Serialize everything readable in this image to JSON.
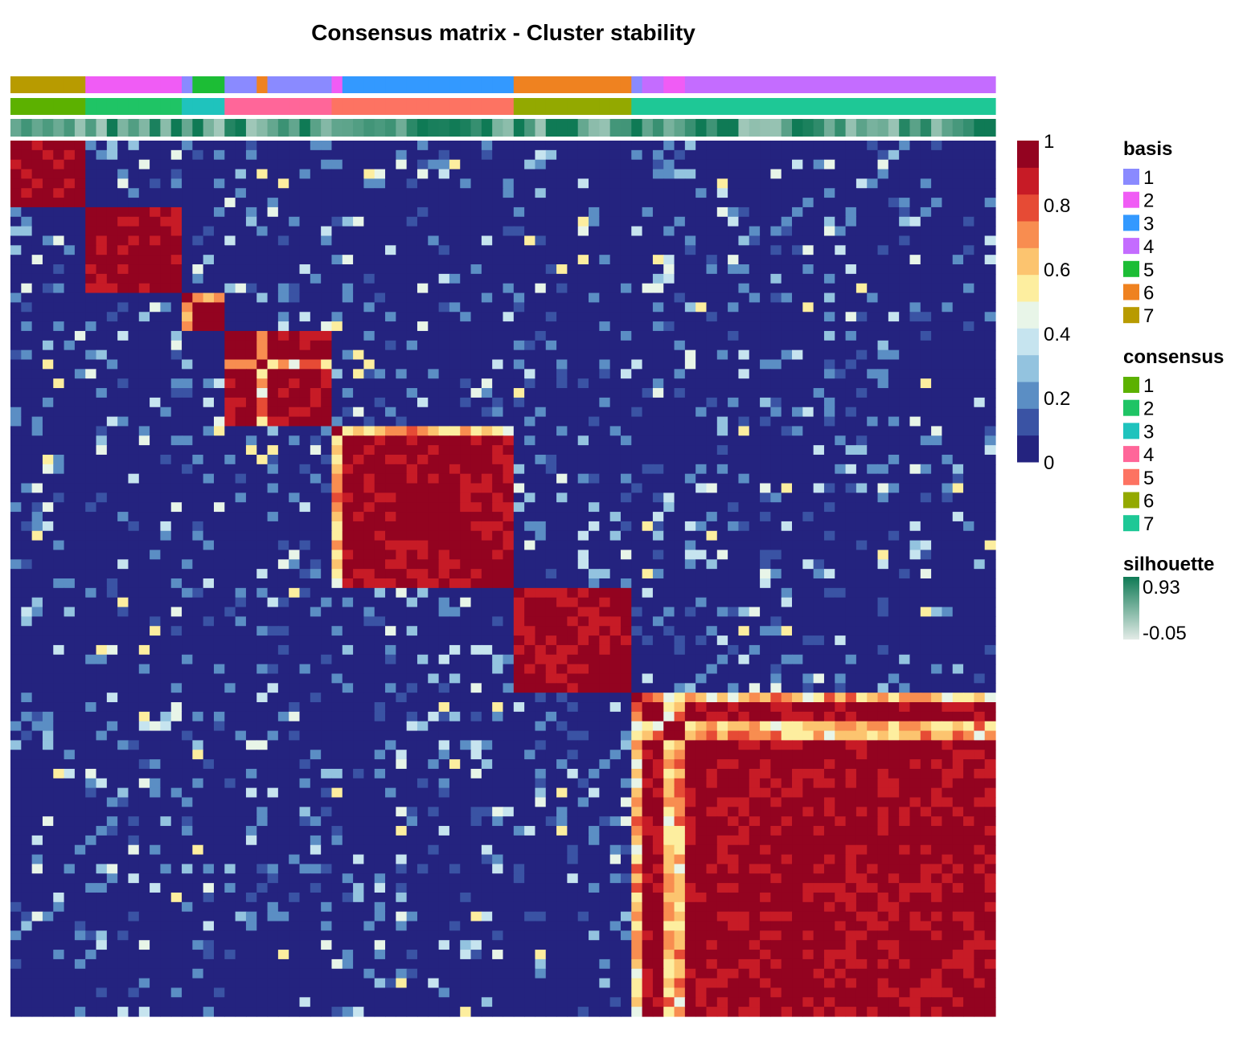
{
  "chart_data": {
    "type": "heatmap",
    "title": "Consensus matrix - Cluster stability",
    "n": 92,
    "value_range": [
      0,
      1
    ],
    "color_scale": {
      "ticks": [
        "1",
        "0.8",
        "0.6",
        "0.4",
        "0.2",
        "0"
      ],
      "colors": [
        "#24237f",
        "#3a53a4",
        "#5b8ec4",
        "#93c3df",
        "#c6e4ef",
        "#e8f5e8",
        "#fdee9f",
        "#fcc46f",
        "#f88d50",
        "#e64b35",
        "#c71b26",
        "#930320"
      ]
    },
    "clusters": [
      {
        "cluster": 7,
        "size": 7,
        "consensus_cluster": 1
      },
      {
        "cluster": 2,
        "size": 9,
        "consensus_cluster": 2
      },
      {
        "cluster": 1,
        "size": 1,
        "consensus_cluster": 3
      },
      {
        "cluster": 5,
        "size": 3,
        "consensus_cluster": 3
      },
      {
        "cluster": 1,
        "size": 3,
        "consensus_cluster": 4
      },
      {
        "cluster": 6,
        "size": 1,
        "consensus_cluster": 4
      },
      {
        "cluster": 1,
        "size": 6,
        "consensus_cluster": 4
      },
      {
        "cluster": 2,
        "size": 1,
        "consensus_cluster": 5
      },
      {
        "cluster": 3,
        "size": 16,
        "consensus_cluster": 5
      },
      {
        "cluster": 6,
        "size": 11,
        "consensus_cluster": 6
      },
      {
        "cluster": 1,
        "size": 1,
        "consensus_cluster": 7
      },
      {
        "cluster": 4,
        "size": 2,
        "consensus_cluster": 7
      },
      {
        "cluster": 2,
        "size": 2,
        "consensus_cluster": 7
      },
      {
        "cluster": 4,
        "size": 29,
        "consensus_cluster": 7
      }
    ],
    "legends": [
      {
        "title": "basis",
        "items": [
          {
            "label": "1",
            "color": "#8a8aff"
          },
          {
            "label": "2",
            "color": "#f05cf5"
          },
          {
            "label": "3",
            "color": "#3399ff"
          },
          {
            "label": "4",
            "color": "#c46cff"
          },
          {
            "label": "5",
            "color": "#1cbd35"
          },
          {
            "label": "6",
            "color": "#ef8220"
          },
          {
            "label": "7",
            "color": "#b89b00"
          }
        ]
      },
      {
        "title": "consensus",
        "items": [
          {
            "label": "1",
            "color": "#5cb100"
          },
          {
            "label": "2",
            "color": "#1fc465"
          },
          {
            "label": "3",
            "color": "#1fc3bd"
          },
          {
            "label": "4",
            "color": "#ff6699"
          },
          {
            "label": "5",
            "color": "#fd7362"
          },
          {
            "label": "6",
            "color": "#93a900"
          },
          {
            "label": "7",
            "color": "#1ec896"
          }
        ]
      },
      {
        "title": "silhouette",
        "range_labels": [
          "0.93",
          "-0.05"
        ],
        "range": [
          -0.05,
          0.93
        ],
        "colors": [
          "#0f7a55",
          "#e3ebe7"
        ]
      }
    ]
  }
}
